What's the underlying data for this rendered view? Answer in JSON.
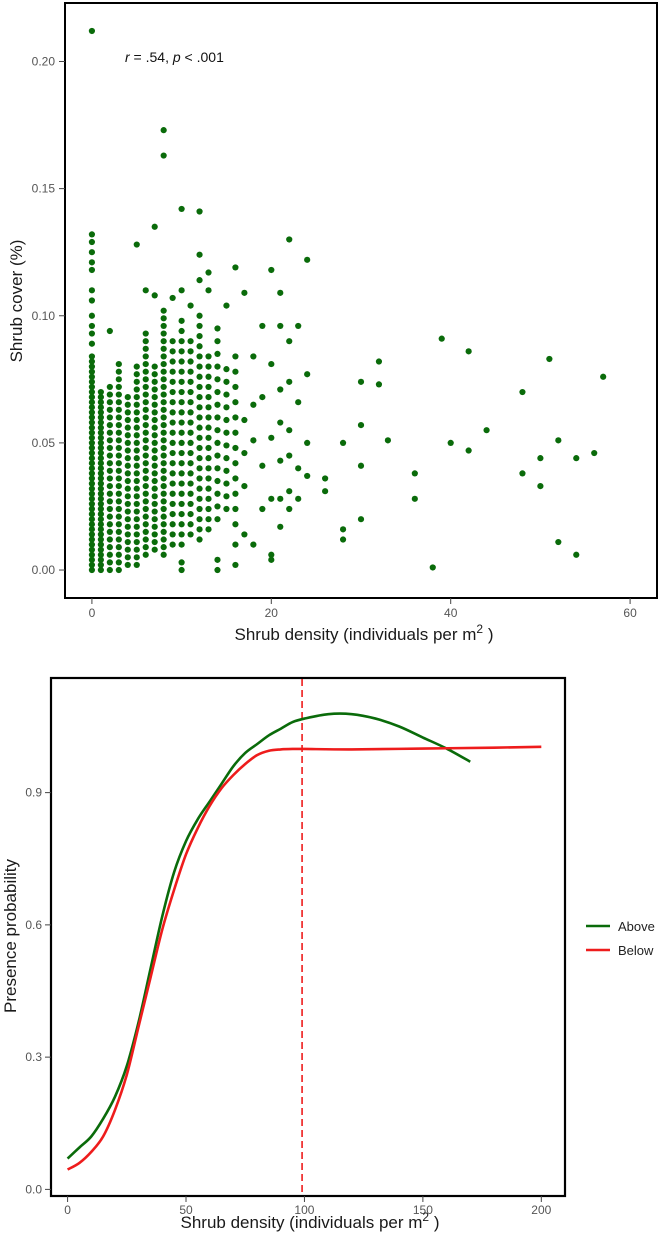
{
  "colors": {
    "green": "#0a6b0a",
    "red": "#ee1c1c",
    "frame": "#000000",
    "tick": "#555555"
  },
  "chart_data": [
    {
      "type": "scatter",
      "xlabel": "Shrub density (individuals per m",
      "xlabel_sup": "2",
      "xlabel_end": " )",
      "ylabel": "Shrub cover (%)",
      "annotation": {
        "r_label": "r",
        "r_text": " = .54, ",
        "p_label": "p",
        "p_text": " < .001"
      },
      "xlim": [
        -3,
        63
      ],
      "ylim": [
        -0.011,
        0.223
      ],
      "x_ticks": [
        0,
        20,
        40,
        60
      ],
      "x_tick_labels": [
        "0",
        "20",
        "40",
        "60"
      ],
      "y_ticks": [
        0.0,
        0.05,
        0.1,
        0.15,
        0.2
      ],
      "y_tick_labels": [
        "0.00",
        "0.05",
        "0.10",
        "0.15",
        "0.20"
      ],
      "color": "#0a6b0a",
      "columns": [
        {
          "x": 0,
          "ymin": 0.0,
          "ymax": 0.085,
          "step": 0.002
        },
        {
          "x": 1,
          "ymin": 0.0,
          "ymax": 0.07,
          "step": 0.002
        },
        {
          "x": 2,
          "ymin": 0.0,
          "ymax": 0.072,
          "step": 0.003
        },
        {
          "x": 3,
          "ymin": 0.0,
          "ymax": 0.083,
          "step": 0.003
        },
        {
          "x": 4,
          "ymin": 0.002,
          "ymax": 0.068,
          "step": 0.003
        },
        {
          "x": 5,
          "ymin": 0.002,
          "ymax": 0.08,
          "step": 0.003
        },
        {
          "x": 6,
          "ymin": 0.006,
          "ymax": 0.095,
          "step": 0.003
        },
        {
          "x": 7,
          "ymin": 0.008,
          "ymax": 0.082,
          "step": 0.003
        },
        {
          "x": 8,
          "ymin": 0.006,
          "ymax": 0.104,
          "step": 0.003
        },
        {
          "x": 9,
          "ymin": 0.01,
          "ymax": 0.09,
          "step": 0.004
        },
        {
          "x": 10,
          "ymin": 0.01,
          "ymax": 0.098,
          "step": 0.004
        },
        {
          "x": 11,
          "ymin": 0.014,
          "ymax": 0.09,
          "step": 0.004
        },
        {
          "x": 12,
          "ymin": 0.012,
          "ymax": 0.1,
          "step": 0.004
        },
        {
          "x": 13,
          "ymin": 0.016,
          "ymax": 0.086,
          "step": 0.004
        },
        {
          "x": 14,
          "ymin": 0.02,
          "ymax": 0.096,
          "step": 0.005
        },
        {
          "x": 15,
          "ymin": 0.024,
          "ymax": 0.08,
          "step": 0.005
        },
        {
          "x": 16,
          "ymin": 0.018,
          "ymax": 0.088,
          "step": 0.006
        }
      ],
      "points": [
        {
          "x": 0,
          "y": 0.212
        },
        {
          "x": 0,
          "y": 0.132
        },
        {
          "x": 0,
          "y": 0.129
        },
        {
          "x": 0,
          "y": 0.125
        },
        {
          "x": 0,
          "y": 0.121
        },
        {
          "x": 0,
          "y": 0.118
        },
        {
          "x": 0,
          "y": 0.11
        },
        {
          "x": 0,
          "y": 0.106
        },
        {
          "x": 0,
          "y": 0.1
        },
        {
          "x": 0,
          "y": 0.096
        },
        {
          "x": 0,
          "y": 0.093
        },
        {
          "x": 0,
          "y": 0.089
        },
        {
          "x": 2,
          "y": 0.094
        },
        {
          "x": 5,
          "y": 0.128
        },
        {
          "x": 6,
          "y": 0.11
        },
        {
          "x": 7,
          "y": 0.135
        },
        {
          "x": 7,
          "y": 0.108
        },
        {
          "x": 8,
          "y": 0.173
        },
        {
          "x": 8,
          "y": 0.163
        },
        {
          "x": 9,
          "y": 0.107
        },
        {
          "x": 10,
          "y": 0.142
        },
        {
          "x": 10,
          "y": 0.11
        },
        {
          "x": 10,
          "y": 0.003
        },
        {
          "x": 10,
          "y": 0.0
        },
        {
          "x": 11,
          "y": 0.104
        },
        {
          "x": 12,
          "y": 0.141
        },
        {
          "x": 12,
          "y": 0.124
        },
        {
          "x": 12,
          "y": 0.114
        },
        {
          "x": 13,
          "y": 0.117
        },
        {
          "x": 13,
          "y": 0.11
        },
        {
          "x": 14,
          "y": 0.0
        },
        {
          "x": 14,
          "y": 0.004
        },
        {
          "x": 15,
          "y": 0.104
        },
        {
          "x": 16,
          "y": 0.119
        },
        {
          "x": 16,
          "y": 0.01
        },
        {
          "x": 16,
          "y": 0.002
        },
        {
          "x": 17,
          "y": 0.109
        },
        {
          "x": 17,
          "y": 0.059
        },
        {
          "x": 17,
          "y": 0.046
        },
        {
          "x": 17,
          "y": 0.033
        },
        {
          "x": 17,
          "y": 0.014
        },
        {
          "x": 18,
          "y": 0.084
        },
        {
          "x": 18,
          "y": 0.065
        },
        {
          "x": 18,
          "y": 0.051
        },
        {
          "x": 18,
          "y": 0.01
        },
        {
          "x": 19,
          "y": 0.096
        },
        {
          "x": 19,
          "y": 0.068
        },
        {
          "x": 19,
          "y": 0.041
        },
        {
          "x": 19,
          "y": 0.024
        },
        {
          "x": 20,
          "y": 0.118
        },
        {
          "x": 20,
          "y": 0.081
        },
        {
          "x": 20,
          "y": 0.052
        },
        {
          "x": 20,
          "y": 0.028
        },
        {
          "x": 20,
          "y": 0.006
        },
        {
          "x": 20,
          "y": 0.004
        },
        {
          "x": 21,
          "y": 0.109
        },
        {
          "x": 21,
          "y": 0.096
        },
        {
          "x": 21,
          "y": 0.071
        },
        {
          "x": 21,
          "y": 0.058
        },
        {
          "x": 21,
          "y": 0.043
        },
        {
          "x": 21,
          "y": 0.028
        },
        {
          "x": 21,
          "y": 0.017
        },
        {
          "x": 22,
          "y": 0.13
        },
        {
          "x": 22,
          "y": 0.09
        },
        {
          "x": 22,
          "y": 0.074
        },
        {
          "x": 22,
          "y": 0.055
        },
        {
          "x": 22,
          "y": 0.045
        },
        {
          "x": 22,
          "y": 0.031
        },
        {
          "x": 22,
          "y": 0.024
        },
        {
          "x": 23,
          "y": 0.096
        },
        {
          "x": 23,
          "y": 0.066
        },
        {
          "x": 23,
          "y": 0.04
        },
        {
          "x": 23,
          "y": 0.028
        },
        {
          "x": 24,
          "y": 0.122
        },
        {
          "x": 24,
          "y": 0.077
        },
        {
          "x": 24,
          "y": 0.05
        },
        {
          "x": 24,
          "y": 0.037
        },
        {
          "x": 26,
          "y": 0.036
        },
        {
          "x": 26,
          "y": 0.031
        },
        {
          "x": 28,
          "y": 0.05
        },
        {
          "x": 28,
          "y": 0.016
        },
        {
          "x": 28,
          "y": 0.012
        },
        {
          "x": 30,
          "y": 0.074
        },
        {
          "x": 30,
          "y": 0.057
        },
        {
          "x": 30,
          "y": 0.041
        },
        {
          "x": 30,
          "y": 0.02
        },
        {
          "x": 32,
          "y": 0.082
        },
        {
          "x": 32,
          "y": 0.073
        },
        {
          "x": 33,
          "y": 0.051
        },
        {
          "x": 36,
          "y": 0.038
        },
        {
          "x": 36,
          "y": 0.028
        },
        {
          "x": 38,
          "y": 0.001
        },
        {
          "x": 39,
          "y": 0.091
        },
        {
          "x": 40,
          "y": 0.05
        },
        {
          "x": 42,
          "y": 0.086
        },
        {
          "x": 42,
          "y": 0.047
        },
        {
          "x": 44,
          "y": 0.055
        },
        {
          "x": 48,
          "y": 0.07
        },
        {
          "x": 48,
          "y": 0.038
        },
        {
          "x": 50,
          "y": 0.044
        },
        {
          "x": 50,
          "y": 0.033
        },
        {
          "x": 51,
          "y": 0.083
        },
        {
          "x": 52,
          "y": 0.051
        },
        {
          "x": 52,
          "y": 0.011
        },
        {
          "x": 54,
          "y": 0.044
        },
        {
          "x": 54,
          "y": 0.006
        },
        {
          "x": 56,
          "y": 0.046
        },
        {
          "x": 57,
          "y": 0.076
        }
      ]
    },
    {
      "type": "line",
      "xlabel": "Shrub density (individuals per m",
      "xlabel_sup": "2",
      "xlabel_end": " )",
      "ylabel": "Presence probability",
      "xlim": [
        -7,
        210
      ],
      "ylim": [
        -0.015,
        1.16
      ],
      "x_ticks": [
        0,
        50,
        100,
        150,
        200
      ],
      "x_tick_labels": [
        "0",
        "50",
        "100",
        "150",
        "200"
      ],
      "y_ticks": [
        0.0,
        0.3,
        0.6,
        0.9
      ],
      "y_tick_labels": [
        "0.0",
        "0.3",
        "0.6",
        "0.9"
      ],
      "vline": {
        "x": 99,
        "color": "#ee1c1c",
        "style": "dashed"
      },
      "legend": {
        "position": "right",
        "entries": [
          "Above",
          "Below"
        ]
      },
      "series": [
        {
          "name": "Above",
          "color": "#0a6b0a",
          "x": [
            0,
            5,
            10,
            15,
            20,
            25,
            30,
            35,
            40,
            45,
            50,
            55,
            60,
            65,
            70,
            75,
            80,
            85,
            90,
            95,
            100,
            110,
            120,
            130,
            140,
            150,
            160,
            170
          ],
          "y": [
            0.07,
            0.095,
            0.12,
            0.16,
            0.21,
            0.28,
            0.38,
            0.5,
            0.62,
            0.72,
            0.79,
            0.84,
            0.88,
            0.92,
            0.96,
            0.99,
            1.01,
            1.03,
            1.045,
            1.06,
            1.068,
            1.078,
            1.078,
            1.068,
            1.05,
            1.025,
            1.0,
            0.97
          ]
        },
        {
          "name": "Below",
          "color": "#ee1c1c",
          "x": [
            0,
            5,
            10,
            15,
            20,
            25,
            30,
            35,
            40,
            45,
            50,
            55,
            60,
            65,
            70,
            75,
            80,
            85,
            90,
            95,
            100,
            120,
            150,
            180,
            200
          ],
          "y": [
            0.045,
            0.06,
            0.085,
            0.12,
            0.18,
            0.26,
            0.37,
            0.48,
            0.59,
            0.68,
            0.76,
            0.82,
            0.87,
            0.91,
            0.94,
            0.965,
            0.985,
            0.995,
            0.998,
            0.999,
            0.999,
            0.998,
            1.0,
            1.002,
            1.004
          ]
        }
      ]
    }
  ]
}
